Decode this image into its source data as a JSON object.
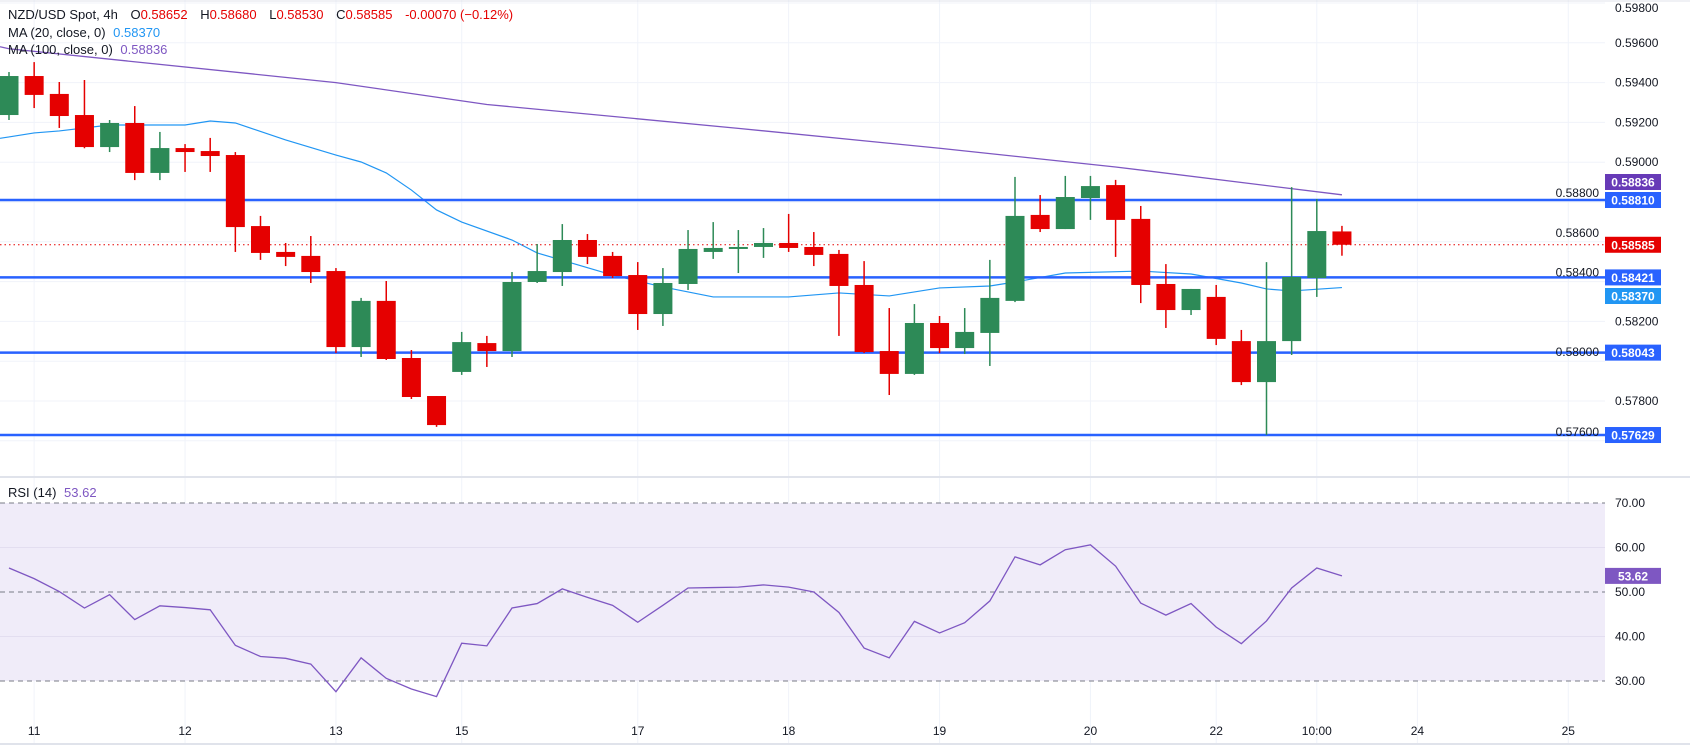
{
  "header": {
    "symbol": "NZD/USD Spot, 4h",
    "o_label": "O",
    "o": "0.58652",
    "h_label": "H",
    "h": "0.58680",
    "l_label": "L",
    "l": "0.58530",
    "c_label": "C",
    "c": "0.58585",
    "change": "-0.00070 (−0.12%)"
  },
  "indicators": [
    {
      "label": "MA (20, close, 0)",
      "value": "0.58370",
      "color": "#2196f3"
    },
    {
      "label": "MA (100, close, 0)",
      "value": "0.58836",
      "color": "#7e57c2"
    }
  ],
  "rsi_legend": {
    "label": "RSI (14)",
    "value": "53.62",
    "color": "#7e57c2"
  },
  "colors": {
    "up": "#2d8a57",
    "down": "#e50000",
    "level": "#2962ff",
    "ma20": "#2196f3",
    "ma100": "#7e57c2",
    "rsi": "#7e57c2",
    "rsi_band": "#f0ecf9",
    "grid": "#f0f3fa",
    "axis_text": "#131722"
  },
  "chart_data": {
    "type": "candlestick",
    "title": "NZD/USD Spot, 4h",
    "grid": true,
    "ylim": [
      0.5756,
      0.5988
    ],
    "price_ticks": [
      "0.59800",
      "0.59600",
      "0.59400",
      "0.59200",
      "0.59000",
      "0.58800",
      "0.58600",
      "0.58400",
      "0.58200",
      "0.58000",
      "0.57800",
      "0.57600"
    ],
    "time_labels": [
      {
        "label": "11",
        "at": 2
      },
      {
        "label": "12",
        "at": 8
      },
      {
        "label": "13",
        "at": 14
      },
      {
        "label": "15",
        "at": 19
      },
      {
        "label": "17",
        "at": 26
      },
      {
        "label": "18",
        "at": 32
      },
      {
        "label": "19",
        "at": 38
      },
      {
        "label": "20",
        "at": 44
      },
      {
        "label": "22",
        "at": 49
      },
      {
        "label": "10:00",
        "at": 53
      },
      {
        "label": "24",
        "at": 57
      },
      {
        "label": "25",
        "at": 63
      }
    ],
    "candles_ohlc": [
      [
        0.59237,
        0.59453,
        0.59212,
        0.59433
      ],
      [
        0.59433,
        0.59503,
        0.59272,
        0.59338
      ],
      [
        0.59343,
        0.59403,
        0.59172,
        0.59232
      ],
      [
        0.59237,
        0.59413,
        0.5907,
        0.59076
      ],
      [
        0.59076,
        0.59212,
        0.59051,
        0.59197
      ],
      [
        0.59197,
        0.59282,
        0.5891,
        0.58946
      ],
      [
        0.58946,
        0.59152,
        0.5891,
        0.59071
      ],
      [
        0.59071,
        0.59091,
        0.58951,
        0.59051
      ],
      [
        0.59056,
        0.59122,
        0.58951,
        0.59031
      ],
      [
        0.59036,
        0.59051,
        0.58549,
        0.58674
      ],
      [
        0.58679,
        0.5873,
        0.58509,
        0.58544
      ],
      [
        0.58549,
        0.58594,
        0.58478,
        0.58524
      ],
      [
        0.58529,
        0.58629,
        0.58393,
        0.58448
      ],
      [
        0.58453,
        0.58468,
        0.58041,
        0.58071
      ],
      [
        0.58071,
        0.58318,
        0.58021,
        0.58303
      ],
      [
        0.58303,
        0.58403,
        0.58006,
        0.58011
      ],
      [
        0.58016,
        0.58056,
        0.5781,
        0.5782
      ],
      [
        0.57825,
        0.57825,
        0.5767,
        0.57679
      ],
      [
        0.57946,
        0.58147,
        0.57931,
        0.58096
      ],
      [
        0.58091,
        0.58127,
        0.57971,
        0.58051
      ],
      [
        0.58051,
        0.58448,
        0.58021,
        0.58398
      ],
      [
        0.58398,
        0.58589,
        0.58393,
        0.58453
      ],
      [
        0.58448,
        0.58689,
        0.58378,
        0.58609
      ],
      [
        0.58609,
        0.58639,
        0.58488,
        0.58524
      ],
      [
        0.58529,
        0.58549,
        0.58418,
        0.58428
      ],
      [
        0.58433,
        0.58498,
        0.58157,
        0.58237
      ],
      [
        0.58237,
        0.58468,
        0.58177,
        0.58393
      ],
      [
        0.58388,
        0.58659,
        0.58358,
        0.58564
      ],
      [
        0.58549,
        0.58699,
        0.58514,
        0.58569
      ],
      [
        0.58564,
        0.58659,
        0.58443,
        0.58574
      ],
      [
        0.58574,
        0.58669,
        0.58519,
        0.58594
      ],
      [
        0.58594,
        0.5874,
        0.58549,
        0.58569
      ],
      [
        0.58574,
        0.58649,
        0.58478,
        0.58534
      ],
      [
        0.58539,
        0.58559,
        0.58127,
        0.58378
      ],
      [
        0.58383,
        0.58503,
        0.58041,
        0.58046
      ],
      [
        0.58051,
        0.58267,
        0.5783,
        0.57936
      ],
      [
        0.57936,
        0.58287,
        0.57931,
        0.58192
      ],
      [
        0.58192,
        0.58227,
        0.58041,
        0.58066
      ],
      [
        0.58066,
        0.58267,
        0.58036,
        0.58147
      ],
      [
        0.58142,
        0.58509,
        0.57976,
        0.58318
      ],
      [
        0.58303,
        0.58926,
        0.58297,
        0.5873
      ],
      [
        0.58735,
        0.58835,
        0.58649,
        0.58664
      ],
      [
        0.58664,
        0.58931,
        0.58664,
        0.58825
      ],
      [
        0.5882,
        0.58931,
        0.5871,
        0.5888
      ],
      [
        0.58885,
        0.58911,
        0.58524,
        0.5871
      ],
      [
        0.58715,
        0.5878,
        0.58292,
        0.58383
      ],
      [
        0.58388,
        0.58488,
        0.58167,
        0.58257
      ],
      [
        0.58257,
        0.58363,
        0.58232,
        0.58363
      ],
      [
        0.58323,
        0.58383,
        0.58081,
        0.58112
      ],
      [
        0.58101,
        0.58157,
        0.5788,
        0.57895
      ],
      [
        0.57895,
        0.58498,
        0.57629,
        0.58101
      ],
      [
        0.58101,
        0.58875,
        0.58031,
        0.58423
      ],
      [
        0.58418,
        0.58815,
        0.58323,
        0.58654
      ],
      [
        0.58652,
        0.5868,
        0.5853,
        0.58585
      ]
    ],
    "ma20": [
      [
        1,
        0.59127
      ],
      [
        2,
        0.59147
      ],
      [
        3,
        0.59157
      ],
      [
        5,
        0.59187
      ],
      [
        8,
        0.59187
      ],
      [
        9,
        0.59207
      ],
      [
        10,
        0.59197
      ],
      [
        12,
        0.59112
      ],
      [
        14,
        0.59036
      ],
      [
        15,
        0.59001
      ],
      [
        16,
        0.58946
      ],
      [
        17,
        0.5886
      ],
      [
        18,
        0.5876
      ],
      [
        19,
        0.58699
      ],
      [
        21,
        0.58609
      ],
      [
        22,
        0.58544
      ],
      [
        25,
        0.58433
      ],
      [
        27,
        0.58373
      ],
      [
        29,
        0.58323
      ],
      [
        32,
        0.58323
      ],
      [
        34,
        0.58343
      ],
      [
        36,
        0.58328
      ],
      [
        38,
        0.58368
      ],
      [
        40,
        0.58378
      ],
      [
        41,
        0.58398
      ],
      [
        43,
        0.58443
      ],
      [
        46,
        0.58453
      ],
      [
        48,
        0.58438
      ],
      [
        50,
        0.58393
      ],
      [
        51,
        0.58363
      ],
      [
        52,
        0.58353
      ],
      [
        54,
        0.5837
      ]
    ],
    "ma100": [
      [
        1,
        0.5957
      ],
      [
        14,
        0.594
      ],
      [
        20,
        0.5929
      ],
      [
        30,
        0.5917
      ],
      [
        38,
        0.5907
      ],
      [
        45,
        0.58976
      ],
      [
        54,
        0.58836
      ]
    ],
    "levels": [
      {
        "value": 0.5881,
        "label": "0.58810"
      },
      {
        "value": 0.58421,
        "label": "0.58421"
      },
      {
        "value": 0.58043,
        "label": "0.58043"
      },
      {
        "value": 0.57629,
        "label": "0.57629"
      }
    ],
    "last_price": {
      "value": 0.58585,
      "label": "0.58585"
    },
    "ma_badges": [
      {
        "value": 0.58836,
        "label": "0.58836",
        "color": "#673ab7"
      },
      {
        "value": 0.5837,
        "label": "0.58370",
        "color": "#2196f3"
      }
    ],
    "rsi": {
      "ylim": [
        30,
        70
      ],
      "ticks": [
        "70.00",
        "60.00",
        "50.00",
        "40.00",
        "30.00"
      ],
      "dashed_levels": [
        70,
        50,
        30
      ],
      "values": [
        55.4,
        53.0,
        50.1,
        46.4,
        49.4,
        43.8,
        46.9,
        46.5,
        46.0,
        38.0,
        35.5,
        35.1,
        33.8,
        27.6,
        35.2,
        30.6,
        28.2,
        26.5,
        38.5,
        37.9,
        46.4,
        47.4,
        50.7,
        48.8,
        47.0,
        43.2,
        47.0,
        50.9,
        51.0,
        51.1,
        51.6,
        51.1,
        50.0,
        45.4,
        37.4,
        35.2,
        43.4,
        40.8,
        43.1,
        48.0,
        57.9,
        56.1,
        59.5,
        60.6,
        55.8,
        47.5,
        44.8,
        47.4,
        42.1,
        38.4,
        43.5,
        50.9,
        55.4,
        53.62
      ],
      "badge": "53.62"
    }
  }
}
